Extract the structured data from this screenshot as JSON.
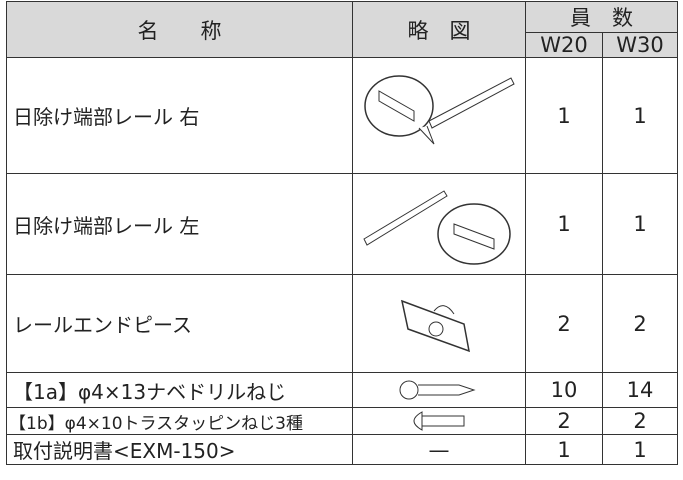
{
  "header": {
    "name": "名　　称",
    "figure": "略　図",
    "count": "員　数",
    "w20": "W20",
    "w30": "W30"
  },
  "rows": [
    {
      "name": "日除け端部レール 右",
      "w20": "1",
      "w30": "1"
    },
    {
      "name": "日除け端部レール 左",
      "w20": "1",
      "w30": "1"
    },
    {
      "name": "レールエンドピース",
      "w20": "2",
      "w30": "2"
    },
    {
      "name": "【1a】φ4×13ナベドリルねじ",
      "w20": "10",
      "w30": "14"
    },
    {
      "name": "【1b】φ4×10トラスタッピンねじ3種",
      "w20": "2",
      "w30": "2"
    },
    {
      "name": "取付説明書<EXM-150>",
      "figure": "—",
      "w20": "1",
      "w30": "1"
    }
  ]
}
